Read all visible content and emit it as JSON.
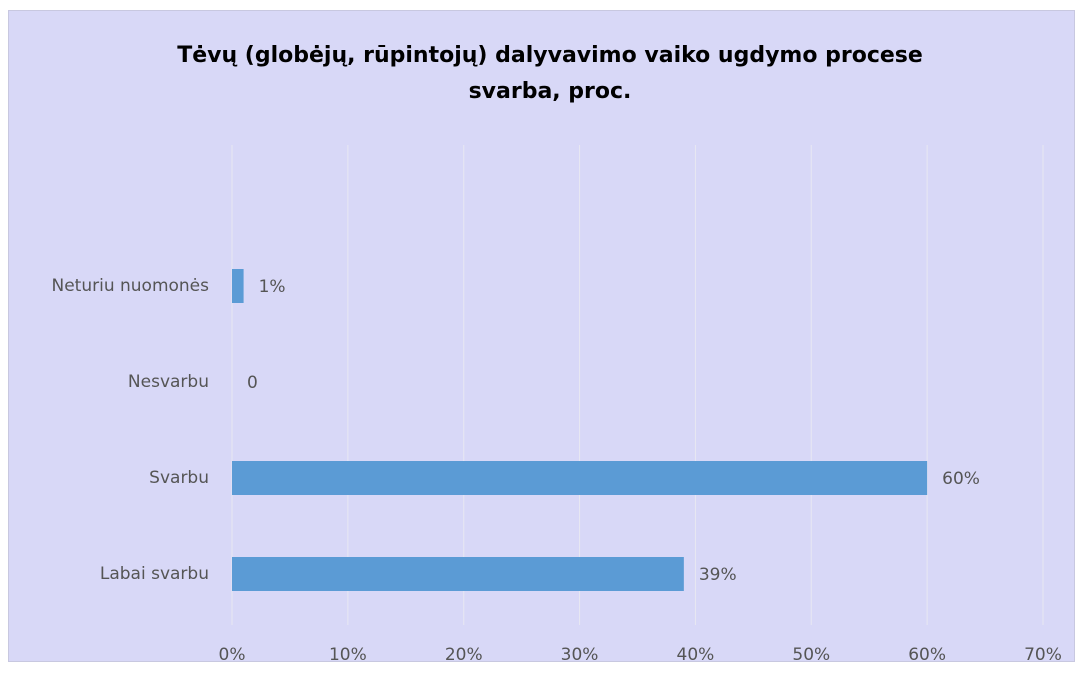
{
  "chart_data": {
    "type": "hbar",
    "title": "Tėvų (globėjų, rūpintojų) dalyvavimo vaiko ugdymo procese svarba, proc.",
    "categories": [
      "Neturiu nuomonės",
      "Nesvarbu",
      "Svarbu",
      "Labai svarbu"
    ],
    "values": [
      1,
      0,
      60,
      39
    ],
    "value_labels": [
      "1%",
      "0",
      "60%",
      "39%"
    ],
    "color": "#5b9bd5",
    "xlim": [
      0,
      70
    ],
    "xticks": [
      {
        "value": 0,
        "label": "0%"
      },
      {
        "value": 10,
        "label": "10%"
      },
      {
        "value": 20,
        "label": "20%"
      },
      {
        "value": 30,
        "label": "30%"
      },
      {
        "value": 40,
        "label": "40%"
      },
      {
        "value": 50,
        "label": "50%"
      },
      {
        "value": 60,
        "label": "60%"
      },
      {
        "value": 70,
        "label": "70%"
      }
    ],
    "grid": true
  }
}
